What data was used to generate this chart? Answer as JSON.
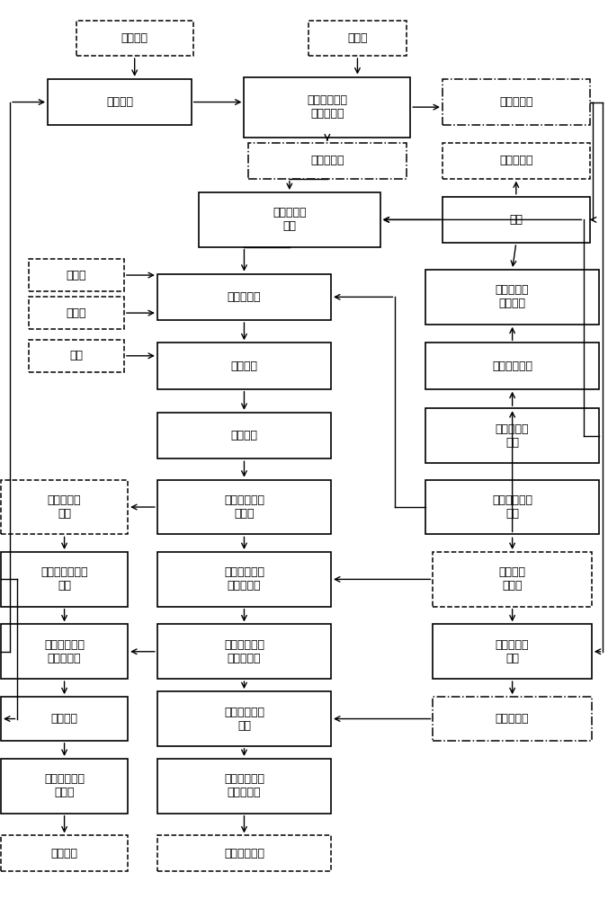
{
  "font_size": 9,
  "nodes": {
    "naoh": [
      0.175,
      0.958,
      0.155,
      0.042,
      "氢氧化钙",
      "dashed"
    ],
    "flyash": [
      0.47,
      0.958,
      0.13,
      0.042,
      "粉煤灰",
      "dashed"
    ],
    "xuankuang": [
      0.155,
      0.882,
      0.19,
      0.055,
      "选矿溶剂",
      "solid"
    ],
    "huaxue": [
      0.43,
      0.876,
      0.22,
      0.072,
      "化学选矿及固\n液分离洗溤",
      "solid"
    ],
    "sijiesuan_cu": [
      0.68,
      0.882,
      0.195,
      0.055,
      "确酸钙粗液",
      "dashdot"
    ],
    "jingkuang": [
      0.43,
      0.812,
      0.21,
      0.042,
      "粉煤灰精矿",
      "dashdot"
    ],
    "chanpinAl": [
      0.68,
      0.812,
      0.195,
      0.042,
      "产品氧化铝",
      "dashed"
    ],
    "jianjin": [
      0.38,
      0.742,
      0.24,
      0.065,
      "硷浸及常压\n脱硅",
      "solid"
    ],
    "jiaoshao": [
      0.68,
      0.742,
      0.195,
      0.055,
      "焙烧",
      "solid"
    ],
    "shihui": [
      0.098,
      0.676,
      0.126,
      0.038,
      "石灰石",
      "dashed"
    ],
    "wuyan": [
      0.098,
      0.631,
      0.126,
      0.038,
      "无烟煤",
      "dashed"
    ],
    "shengliaojiang": [
      0.32,
      0.65,
      0.23,
      0.055,
      "生料浆制备",
      "solid"
    ],
    "lvsuanfenjie": [
      0.675,
      0.65,
      0.23,
      0.065,
      "铝酸钙分解\n溶液蜡发",
      "solid"
    ],
    "yanmei": [
      0.098,
      0.58,
      0.126,
      0.038,
      "烟煤",
      "dashed"
    ],
    "shuliaoshao": [
      0.32,
      0.568,
      0.23,
      0.055,
      "熟料烧结",
      "solid"
    ],
    "qingyanghua": [
      0.675,
      0.568,
      0.23,
      0.055,
      "氢氧化铝分解",
      "solid"
    ],
    "shuliaorong": [
      0.32,
      0.485,
      0.23,
      0.055,
      "熟料溶出",
      "solid"
    ],
    "lvsuanjing": [
      0.675,
      0.485,
      0.23,
      0.065,
      "铝酸钙溶液\n精制",
      "solid"
    ],
    "hanguijvsuan": [
      0.082,
      0.4,
      0.168,
      0.065,
      "含确铝酸钙\n溶液",
      "dashed"
    ],
    "guitangfen": [
      0.32,
      0.4,
      0.23,
      0.065,
      "确酸二钙分离\n及洗溤",
      "solid"
    ],
    "jianjianfen": [
      0.675,
      0.4,
      0.23,
      0.065,
      "硷浸渣分离及\n洗溤",
      "solid"
    ],
    "hanguijingjian": [
      0.082,
      0.314,
      0.168,
      0.065,
      "含确铝酸钙溶液\n精制",
      "solid"
    ],
    "shuithe": [
      0.32,
      0.314,
      0.23,
      0.065,
      "水热合成硬确\n钙石前驱体",
      "solid"
    ],
    "guitangerj": [
      0.675,
      0.314,
      0.21,
      0.065,
      "确酸二钙\n洗溤料",
      "dashed"
    ],
    "dijvyang": [
      0.082,
      0.228,
      0.168,
      0.065,
      "低确氢氧化钙\n稀溶液蜡发",
      "solid"
    ],
    "qiankufen": [
      0.32,
      0.228,
      0.23,
      0.065,
      "硬确钙石前驱\n体分离洗溤",
      "solid"
    ],
    "sijvsuanjing": [
      0.675,
      0.228,
      0.21,
      0.065,
      "确酸钙溶液\n精制",
      "solid"
    ],
    "feishiheCheng": [
      0.082,
      0.148,
      0.168,
      0.052,
      "永石合成",
      "solid"
    ],
    "shuithehying": [
      0.32,
      0.148,
      0.23,
      0.065,
      "水热合成硬确\n钙石",
      "solid"
    ],
    "sijvsuan": [
      0.675,
      0.148,
      0.21,
      0.052,
      "确酸钙精液",
      "dashdot"
    ],
    "feishifen": [
      0.082,
      0.068,
      0.168,
      0.065,
      "永石分离洗溤\n及烘干",
      "solid"
    ],
    "hyyingguishifen": [
      0.32,
      0.068,
      0.23,
      0.065,
      "硬确钙石分离\n洗溤及烘干",
      "solid"
    ],
    "chanpinfeishi": [
      0.082,
      -0.012,
      0.168,
      0.042,
      "产品永石",
      "dashed"
    ],
    "chanpinhying": [
      0.32,
      -0.012,
      0.23,
      0.042,
      "产品硬确钙石",
      "dashed"
    ]
  }
}
